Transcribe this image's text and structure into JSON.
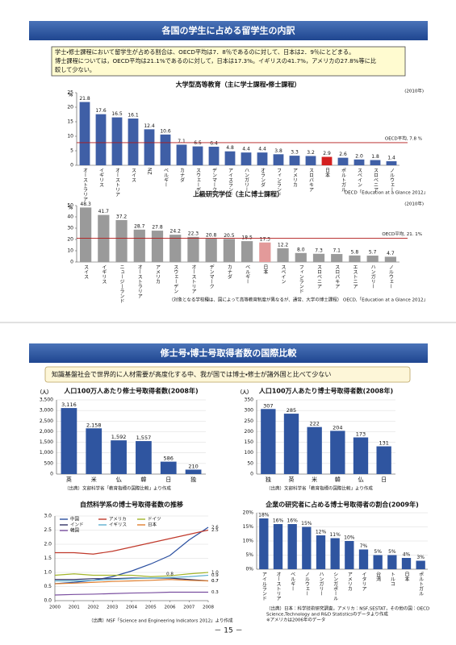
{
  "page": {
    "section1_title": "各国の学生に占める留学生の内訳",
    "section1_text": [
      "学士・修士課程において留学生が占める割合は、OECD平均は7．8％であるのに対して、日本は2．9％にとどまる。",
      "博士課程については，OECD平均は21.1%であるのに対して，日本は17.3%。イギリスの41.7%，アメリカの27.8%等に比",
      "較して少ない。"
    ],
    "section2_title": "修士号・博士号取得者数の国際比較",
    "section2_text": "知識基盤社会で世界的に人材需要が高度化する中、我が国では博士・修士が諸外国と比べて少ない",
    "page_number": "－ 15 －"
  },
  "chart_data": [
    {
      "type": "bar",
      "title": "大学型高等教育（主に学士課程・修士課程）",
      "period": "(2010年)",
      "y_unit": "%",
      "categories": [
        "オーストラリア",
        "イギリス",
        "オーストリア",
        "スイス",
        "NZ",
        "ベルギー",
        "カナダ",
        "スウェーデン",
        "デンマーク",
        "アイスランド",
        "ハンガリー",
        "オランダ",
        "フィンランド",
        "アメリカ",
        "スロバキア",
        "日本",
        "ポルトガル",
        "スペイン",
        "スロベニア",
        "ノルウェー"
      ],
      "values": [
        21.8,
        17.6,
        16.5,
        16.1,
        12.4,
        10.6,
        7.1,
        6.5,
        6.4,
        4.8,
        4.4,
        4.4,
        3.8,
        3.3,
        3.2,
        2.9,
        2.6,
        2.0,
        1.8,
        1.4
      ],
      "value_labels": [
        "21.8",
        "17.6",
        "16.5",
        "16.1",
        "12.4",
        "10.6",
        "7.1",
        "6.5",
        "6.4",
        "4.8",
        "4.4",
        "4.4",
        "3.8",
        "3.3",
        "3.2",
        "2.9",
        "2.6",
        "2.0",
        "1.8",
        "1.4"
      ],
      "colors": [
        "#3f5fa6",
        "#3f5fa6",
        "#3f5fa6",
        "#3f5fa6",
        "#3f5fa6",
        "#3f5fa6",
        "#3f5fa6",
        "#3f5fa6",
        "#3f5fa6",
        "#3f5fa6",
        "#3f5fa6",
        "#3f5fa6",
        "#3f5fa6",
        "#3f5fa6",
        "#3f5fa6",
        "#d42020",
        "#3f5fa6",
        "#3f5fa6",
        "#3f5fa6",
        "#3f5fa6"
      ],
      "ylim": [
        0,
        25
      ],
      "yticks": [
        0,
        5,
        10,
        15,
        20,
        25
      ],
      "grid": false,
      "reference_line": {
        "value": 7.8,
        "label": "OECD平均, 7.8 %",
        "color": "#b01818"
      },
      "notes": [
        "OECD「Education at a Glance 2012」"
      ]
    },
    {
      "type": "bar",
      "title": "上級研究学位（主に博士課程）",
      "period": "(2010年)",
      "y_unit": "%",
      "categories": [
        "スイス",
        "イギリス",
        "ニュージーランド",
        "オーストラリア",
        "アメリカ",
        "スウェーデン",
        "オーストリア",
        "デンマーク",
        "カナダ",
        "ベルギー",
        "日本",
        "スペイン",
        "フィンランド",
        "スロベニア",
        "スロバキア",
        "エストニア",
        "ハンガリー",
        "ノルウェー"
      ],
      "values": [
        48.3,
        41.7,
        37.2,
        28.7,
        27.8,
        24.2,
        22.3,
        20.8,
        20.5,
        18.5,
        17.3,
        12.2,
        8.0,
        7.3,
        7.1,
        5.8,
        5.7,
        4.7
      ],
      "value_labels": [
        "48.3",
        "41.7",
        "37.2",
        "28.7",
        "27.8",
        "24.2",
        "22.3",
        "20.8",
        "20.5",
        "18.5",
        "17.3",
        "12.2",
        "8.0",
        "7.3",
        "7.1",
        "5.8",
        "5.7",
        "4.7"
      ],
      "colors": [
        "#9a9a9a",
        "#9a9a9a",
        "#9a9a9a",
        "#9a9a9a",
        "#9a9a9a",
        "#9a9a9a",
        "#9a9a9a",
        "#9a9a9a",
        "#9a9a9a",
        "#9a9a9a",
        "#e39a9a",
        "#9a9a9a",
        "#9a9a9a",
        "#9a9a9a",
        "#9a9a9a",
        "#9a9a9a",
        "#9a9a9a",
        "#9a9a9a"
      ],
      "ylim": [
        0,
        50
      ],
      "yticks": [
        0,
        10,
        20,
        30,
        40,
        50
      ],
      "grid": false,
      "reference_line": {
        "value": 21.1,
        "label": "OECD平均, 21. 1%",
        "color": "#b01818"
      },
      "notes": [
        "（対象となる学校種は、国によって高等教育制度が異なるが、通常、大学の博士課程） OECD,「Education at a Glance 2012」"
      ]
    },
    {
      "type": "bar",
      "title": "人口100万人あたり修士号取得者数(2008年)",
      "y_unit": "（人）",
      "categories": [
        "英",
        "米",
        "仏",
        "韓",
        "日",
        "独"
      ],
      "values": [
        3116,
        2158,
        1592,
        1557,
        586,
        210
      ],
      "value_labels": [
        "3,116",
        "2,158",
        "1,592",
        "1,557",
        "586",
        "210"
      ],
      "colors": [
        "#2f55a0",
        "#2f55a0",
        "#2f55a0",
        "#2f55a0",
        "#2f55a0",
        "#2f55a0"
      ],
      "ylim": [
        0,
        3500
      ],
      "yticks": [
        0,
        500,
        {
          "value": 1000,
          "label": "1,000"
        },
        {
          "value": 1500,
          "label": "1,500"
        },
        {
          "value": 2000,
          "label": "2,000"
        },
        {
          "value": 2500,
          "label": "2,500"
        },
        {
          "value": 3000,
          "label": "3,000"
        },
        {
          "value": 3500,
          "label": "3,500"
        }
      ],
      "grid": true,
      "notes": [
        "（出典）文部科学省「教育指標の国際比較」より作成"
      ]
    },
    {
      "type": "bar",
      "title": "人口100万人あたり博士号取得者数(2008年)",
      "y_unit": "（人）",
      "categories": [
        "独",
        "英",
        "米",
        "韓",
        "仏",
        "日"
      ],
      "values": [
        307,
        285,
        222,
        204,
        173,
        131
      ],
      "value_labels": [
        "307",
        "285",
        "222",
        "204",
        "173",
        "131"
      ],
      "colors": [
        "#2f55a0",
        "#2f55a0",
        "#2f55a0",
        "#2f55a0",
        "#2f55a0",
        "#2f55a0"
      ],
      "ylim": [
        0,
        350
      ],
      "yticks": [
        0,
        50,
        100,
        150,
        200,
        250,
        300,
        350
      ],
      "grid": true,
      "notes": [
        "（出典）文部科学省「教育指標の国際比較」より作成"
      ]
    },
    {
      "type": "line",
      "title": "自然科学系の博士号取得者数の推移",
      "x": [
        2000,
        2001,
        2002,
        2003,
        2004,
        2005,
        2006,
        2007,
        2008
      ],
      "xlim": [
        2000,
        2008
      ],
      "xticks": [
        2000,
        2001,
        2002,
        2003,
        2004,
        2005,
        2006,
        2007,
        2008
      ],
      "ylim": [
        0,
        3
      ],
      "yticks": [
        {
          "value": 0,
          "label": "0.0"
        },
        0.5,
        {
          "value": 1,
          "label": "1.0"
        },
        1.5,
        {
          "value": 2,
          "label": "2.0"
        },
        2.5,
        {
          "value": 3,
          "label": "3.0"
        }
      ],
      "grid": true,
      "series": [
        {
          "name": "中国",
          "color": "#2a4fa0",
          "values": [
            0.6,
            0.65,
            0.72,
            0.85,
            1.05,
            1.3,
            1.6,
            2.15,
            2.6
          ],
          "value_labels": [
            null,
            null,
            null,
            null,
            null,
            null,
            null,
            null,
            "2.6"
          ]
        },
        {
          "name": "アメリカ",
          "color": "#c0392b",
          "values": [
            1.7,
            1.7,
            1.65,
            1.75,
            1.9,
            2.05,
            2.2,
            2.35,
            2.5
          ],
          "value_labels": [
            null,
            null,
            null,
            null,
            null,
            null,
            null,
            null,
            "2.5"
          ]
        },
        {
          "name": "ドイツ",
          "color": "#a3b52a",
          "values": [
            0.9,
            0.95,
            0.9,
            0.9,
            0.9,
            0.85,
            0.88,
            0.95,
            1.0
          ],
          "value_labels": [
            null,
            null,
            null,
            null,
            null,
            null,
            null,
            null,
            "1.0"
          ]
        },
        {
          "name": "インド",
          "color": "#333366",
          "values": [
            0.75,
            0.75,
            0.78,
            0.78,
            0.8,
            0.8,
            0.8,
            0.75,
            0.7
          ],
          "value_labels": [
            null,
            null,
            null,
            null,
            null,
            null,
            "0.8",
            null,
            "0.7"
          ]
        },
        {
          "name": "イギリス",
          "color": "#5fb0d0",
          "values": [
            0.7,
            0.7,
            0.72,
            0.75,
            0.78,
            0.8,
            0.82,
            0.85,
            0.9
          ],
          "value_labels": [
            null,
            null,
            null,
            null,
            null,
            null,
            null,
            null,
            "0.9"
          ]
        },
        {
          "name": "日本",
          "color": "#e08030",
          "values": [
            0.6,
            0.62,
            0.65,
            0.68,
            0.7,
            0.72,
            0.75,
            0.72,
            0.7
          ],
          "value_labels": [
            null,
            null,
            null,
            null,
            null,
            null,
            null,
            null,
            "0.7"
          ]
        },
        {
          "name": "韓国",
          "color": "#7a4fa0",
          "values": [
            0.2,
            0.22,
            0.23,
            0.25,
            0.27,
            0.28,
            0.3,
            0.3,
            0.3
          ],
          "value_labels": [
            null,
            null,
            null,
            null,
            null,
            null,
            null,
            null,
            "0.3"
          ]
        }
      ],
      "notes": [
        "（出典）NSF「Science and Engineering Indicators 2012」より作成"
      ]
    },
    {
      "type": "bar",
      "title": "企業の研究者に占める博士号取得者の割合(2009年)",
      "categories": [
        "アイルランド",
        "オーストリア",
        "ベルギー",
        "ノルウェー",
        "ハンガリー",
        "シンガポール",
        "アメリカ",
        "イタリア",
        "台湾",
        "トルコ",
        "日本",
        "ポルトガル"
      ],
      "values": [
        18,
        16,
        16,
        15,
        12,
        11,
        10,
        7,
        5,
        5,
        4,
        3
      ],
      "value_labels": [
        "18%",
        "16%",
        "16%",
        "15%",
        "12%",
        "11%",
        "10%",
        "7%",
        "5%",
        "5%",
        "4%",
        "3%"
      ],
      "colors": [
        "#2f55a0",
        "#2f55a0",
        "#2f55a0",
        "#2f55a0",
        "#2f55a0",
        "#2f55a0",
        "#2f55a0",
        "#2f55a0",
        "#2f55a0",
        "#2f55a0",
        "#2f55a0",
        "#2f55a0"
      ],
      "ylim": [
        0,
        20
      ],
      "yticks": [
        {
          "value": 0,
          "label": "0%"
        },
        {
          "value": 5,
          "label": "5%"
        },
        {
          "value": 10,
          "label": "10%"
        },
        {
          "value": 15,
          "label": "15%"
        },
        {
          "value": 20,
          "label": "20%"
        }
      ],
      "grid": true,
      "notes": [
        "（出典）日本：科学技術研究調査，アメリカ：NSF,SESTAT，その他の国：OECD",
        "Science,Technology and R&D Statisticsのデータより作成",
        "※アメリカは2006年のデータ"
      ]
    }
  ]
}
